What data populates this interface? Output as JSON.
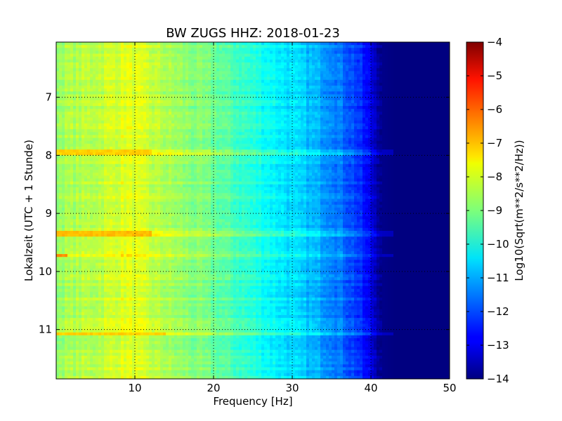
{
  "chart_data": {
    "type": "heatmap",
    "title": "BW ZUGS HHZ: 2018-01-23",
    "xlabel": "Frequency [Hz]",
    "ylabel": "Lokalzeit (UTC + 1 Stunde)",
    "xlim": [
      0,
      50
    ],
    "ylim": [
      11.85,
      6.05
    ],
    "y_inverted": true,
    "xticks": [
      10,
      20,
      30,
      40,
      50
    ],
    "yticks": [
      7,
      8,
      9,
      10,
      11
    ],
    "grid": true,
    "colormap": "jet",
    "colorbar": {
      "label": "Log10(Sqrt(m**2/s**2/Hz))",
      "range": [
        -14,
        -4
      ],
      "ticks": [
        -14,
        -13,
        -12,
        -11,
        -10,
        -9,
        -8,
        -7,
        -6,
        -5,
        -4
      ]
    },
    "value_profile": {
      "frequency_hz": [
        0,
        5,
        9,
        15,
        20,
        25,
        30,
        35,
        38,
        40,
        41.5,
        43,
        50
      ],
      "log10_amplitude": [
        -8.7,
        -8.4,
        -8.0,
        -8.7,
        -9.2,
        -9.9,
        -10.6,
        -11.3,
        -12.1,
        -13.0,
        -13.9,
        -14.0,
        -14.0
      ]
    },
    "high_energy_bands": [
      {
        "time": 7.95,
        "max_frequency_hz": 12,
        "log10_amplitude": -7.3
      },
      {
        "time": 9.35,
        "max_frequency_hz": 12,
        "log10_amplitude": -7.1
      },
      {
        "time": 9.73,
        "max_frequency_hz": 1.5,
        "log10_amplitude": -6.7
      },
      {
        "time": 11.07,
        "max_frequency_hz": 14,
        "log10_amplitude": -7.3
      }
    ]
  }
}
